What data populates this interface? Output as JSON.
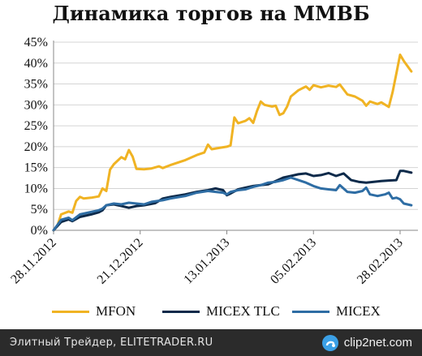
{
  "chart_data": {
    "type": "line",
    "title": "Динамика торгов на ММВБ",
    "xlabel": "",
    "ylabel": "",
    "ylim": [
      0,
      45
    ],
    "yticks": [
      "0%",
      "5%",
      "10%",
      "15%",
      "20%",
      "25%",
      "30%",
      "35%",
      "40%",
      "45%"
    ],
    "xticks": [
      "28.11.2012",
      "21.12.2012",
      "13.01.2013",
      "05.02.2013",
      "28.02.2013"
    ],
    "grid": "horizontal",
    "legend_position": "bottom",
    "series": [
      {
        "name": "MFON",
        "color": "#f0b323",
        "points": [
          [
            "2012-11-28",
            0.0
          ],
          [
            "2012-11-29",
            1.0
          ],
          [
            "2012-11-30",
            3.8
          ],
          [
            "2012-12-02",
            4.5
          ],
          [
            "2012-12-03",
            4.2
          ],
          [
            "2012-12-04",
            7.0
          ],
          [
            "2012-12-05",
            8.0
          ],
          [
            "2012-12-06",
            7.6
          ],
          [
            "2012-12-08",
            7.8
          ],
          [
            "2012-12-10",
            8.1
          ],
          [
            "2012-12-11",
            10.0
          ],
          [
            "2012-12-12",
            9.4
          ],
          [
            "2012-12-13",
            14.5
          ],
          [
            "2012-12-14",
            15.8
          ],
          [
            "2012-12-16",
            17.5
          ],
          [
            "2012-12-17",
            17.0
          ],
          [
            "2012-12-18",
            19.2
          ],
          [
            "2012-12-19",
            17.6
          ],
          [
            "2012-12-20",
            14.7
          ],
          [
            "2012-12-22",
            14.6
          ],
          [
            "2012-12-24",
            14.8
          ],
          [
            "2012-12-26",
            15.3
          ],
          [
            "2012-12-27",
            14.9
          ],
          [
            "2012-12-29",
            15.6
          ],
          [
            "2013-01-02",
            16.8
          ],
          [
            "2013-01-05",
            18.0
          ],
          [
            "2013-01-07",
            18.6
          ],
          [
            "2013-01-08",
            20.5
          ],
          [
            "2013-01-09",
            19.4
          ],
          [
            "2013-01-11",
            19.7
          ],
          [
            "2013-01-13",
            20.0
          ],
          [
            "2013-01-14",
            20.3
          ],
          [
            "2013-01-15",
            27.0
          ],
          [
            "2013-01-16",
            25.6
          ],
          [
            "2013-01-18",
            26.2
          ],
          [
            "2013-01-19",
            26.8
          ],
          [
            "2013-01-20",
            25.7
          ],
          [
            "2013-01-21",
            28.5
          ],
          [
            "2013-01-22",
            30.8
          ],
          [
            "2013-01-23",
            30.0
          ],
          [
            "2013-01-25",
            29.6
          ],
          [
            "2013-01-26",
            29.8
          ],
          [
            "2013-01-27",
            27.6
          ],
          [
            "2013-01-28",
            28.0
          ],
          [
            "2013-01-29",
            29.6
          ],
          [
            "2013-01-30",
            32.0
          ],
          [
            "2013-02-01",
            33.5
          ],
          [
            "2013-02-03",
            34.4
          ],
          [
            "2013-02-04",
            33.6
          ],
          [
            "2013-02-05",
            34.7
          ],
          [
            "2013-02-07",
            34.2
          ],
          [
            "2013-02-09",
            34.6
          ],
          [
            "2013-02-11",
            34.3
          ],
          [
            "2013-02-12",
            34.9
          ],
          [
            "2013-02-14",
            32.5
          ],
          [
            "2013-02-16",
            32.0
          ],
          [
            "2013-02-18",
            31.0
          ],
          [
            "2013-02-19",
            29.8
          ],
          [
            "2013-02-20",
            30.8
          ],
          [
            "2013-02-22",
            30.2
          ],
          [
            "2013-02-23",
            30.6
          ],
          [
            "2013-02-25",
            29.5
          ],
          [
            "2013-02-26",
            33.0
          ],
          [
            "2013-02-27",
            37.5
          ],
          [
            "2013-02-28",
            42.0
          ],
          [
            "2013-03-01",
            40.5
          ],
          [
            "2013-03-03",
            38.0
          ]
        ]
      },
      {
        "name": "MICEX TLC",
        "color": "#0d2a4a",
        "points": [
          [
            "2012-11-28",
            0.0
          ],
          [
            "2012-11-30",
            2.0
          ],
          [
            "2012-12-02",
            2.6
          ],
          [
            "2012-12-03",
            2.2
          ],
          [
            "2012-12-05",
            3.2
          ],
          [
            "2012-12-08",
            3.8
          ],
          [
            "2012-12-10",
            4.3
          ],
          [
            "2012-12-11",
            4.8
          ],
          [
            "2012-12-12",
            6.0
          ],
          [
            "2012-12-14",
            6.2
          ],
          [
            "2012-12-16",
            5.8
          ],
          [
            "2012-12-18",
            5.4
          ],
          [
            "2012-12-20",
            5.8
          ],
          [
            "2012-12-22",
            6.0
          ],
          [
            "2012-12-25",
            6.5
          ],
          [
            "2012-12-27",
            7.6
          ],
          [
            "2012-12-29",
            8.0
          ],
          [
            "2013-01-02",
            8.6
          ],
          [
            "2013-01-05",
            9.2
          ],
          [
            "2013-01-08",
            9.6
          ],
          [
            "2013-01-10",
            10.0
          ],
          [
            "2013-01-12",
            9.6
          ],
          [
            "2013-01-13",
            8.4
          ],
          [
            "2013-01-14",
            8.8
          ],
          [
            "2013-01-16",
            9.8
          ],
          [
            "2013-01-18",
            10.2
          ],
          [
            "2013-01-20",
            10.6
          ],
          [
            "2013-01-22",
            10.8
          ],
          [
            "2013-01-24",
            11.0
          ],
          [
            "2013-01-26",
            11.8
          ],
          [
            "2013-01-28",
            12.6
          ],
          [
            "2013-01-30",
            13.0
          ],
          [
            "2013-02-01",
            13.4
          ],
          [
            "2013-02-03",
            13.6
          ],
          [
            "2013-02-05",
            13.0
          ],
          [
            "2013-02-07",
            13.2
          ],
          [
            "2013-02-09",
            13.7
          ],
          [
            "2013-02-11",
            13.0
          ],
          [
            "2013-02-13",
            13.6
          ],
          [
            "2013-02-15",
            12.0
          ],
          [
            "2013-02-17",
            11.6
          ],
          [
            "2013-02-19",
            11.4
          ],
          [
            "2013-02-21",
            11.6
          ],
          [
            "2013-02-23",
            11.8
          ],
          [
            "2013-02-25",
            11.9
          ],
          [
            "2013-02-27",
            12.0
          ],
          [
            "2013-02-28",
            14.2
          ],
          [
            "2013-03-01",
            14.2
          ],
          [
            "2013-03-03",
            13.8
          ]
        ]
      },
      {
        "name": "MICEX",
        "color": "#2e6da4",
        "points": [
          [
            "2012-11-28",
            0.0
          ],
          [
            "2012-11-30",
            2.5
          ],
          [
            "2012-12-02",
            3.0
          ],
          [
            "2012-12-03",
            2.4
          ],
          [
            "2012-12-05",
            3.8
          ],
          [
            "2012-12-08",
            4.4
          ],
          [
            "2012-12-10",
            4.8
          ],
          [
            "2012-12-11",
            5.2
          ],
          [
            "2012-12-12",
            6.0
          ],
          [
            "2012-12-14",
            6.4
          ],
          [
            "2012-12-16",
            6.2
          ],
          [
            "2012-12-18",
            6.6
          ],
          [
            "2012-12-20",
            6.4
          ],
          [
            "2012-12-22",
            6.2
          ],
          [
            "2012-12-24",
            6.8
          ],
          [
            "2012-12-27",
            7.2
          ],
          [
            "2012-12-29",
            7.6
          ],
          [
            "2013-01-02",
            8.2
          ],
          [
            "2013-01-05",
            9.0
          ],
          [
            "2013-01-08",
            9.4
          ],
          [
            "2013-01-10",
            9.2
          ],
          [
            "2013-01-12",
            9.0
          ],
          [
            "2013-01-13",
            8.6
          ],
          [
            "2013-01-14",
            9.2
          ],
          [
            "2013-01-16",
            9.6
          ],
          [
            "2013-01-18",
            9.8
          ],
          [
            "2013-01-20",
            10.4
          ],
          [
            "2013-01-22",
            10.8
          ],
          [
            "2013-01-24",
            11.4
          ],
          [
            "2013-01-26",
            11.6
          ],
          [
            "2013-01-28",
            12.0
          ],
          [
            "2013-01-30",
            12.6
          ],
          [
            "2013-02-01",
            12.0
          ],
          [
            "2013-02-03",
            11.4
          ],
          [
            "2013-02-05",
            10.6
          ],
          [
            "2013-02-07",
            10.0
          ],
          [
            "2013-02-09",
            9.8
          ],
          [
            "2013-02-11",
            9.6
          ],
          [
            "2013-02-12",
            10.8
          ],
          [
            "2013-02-14",
            9.2
          ],
          [
            "2013-02-16",
            9.0
          ],
          [
            "2013-02-18",
            9.4
          ],
          [
            "2013-02-19",
            10.2
          ],
          [
            "2013-02-20",
            8.6
          ],
          [
            "2013-02-22",
            8.2
          ],
          [
            "2013-02-24",
            8.6
          ],
          [
            "2013-02-25",
            9.0
          ],
          [
            "2013-02-26",
            7.6
          ],
          [
            "2013-02-27",
            7.8
          ],
          [
            "2013-02-28",
            7.4
          ],
          [
            "2013-03-01",
            6.4
          ],
          [
            "2013-03-03",
            6.0
          ]
        ]
      }
    ]
  },
  "footer": {
    "credit": "Элитный Трейдер, ELITETRADER.RU",
    "brand": "clip2net.com"
  }
}
